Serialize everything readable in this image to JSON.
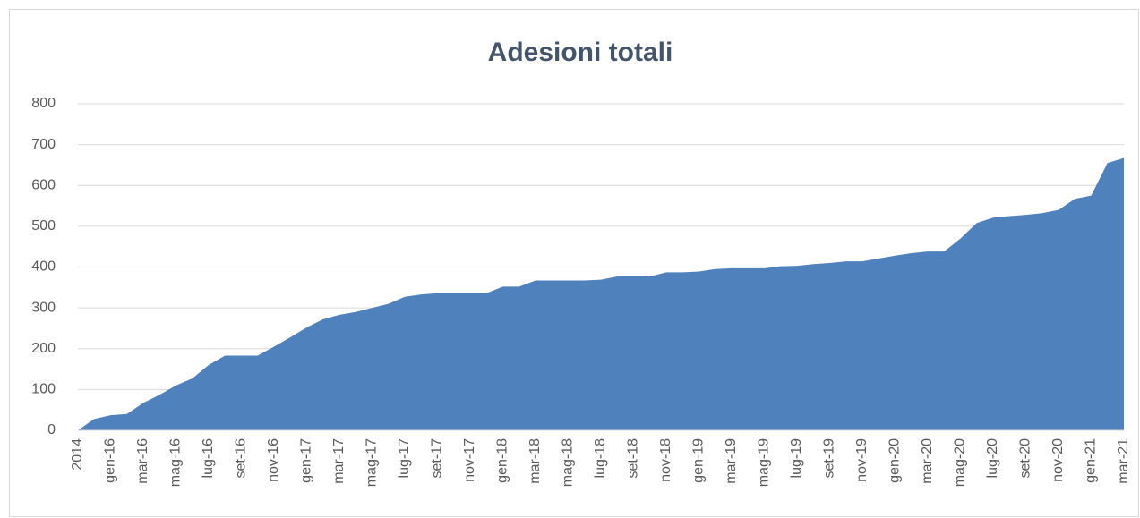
{
  "chart_data": {
    "type": "area",
    "title": "Adesioni totali",
    "categories": [
      "2014",
      null,
      "gen-16",
      null,
      "mar-16",
      null,
      "mag-16",
      null,
      "lug-16",
      null,
      "set-16",
      null,
      "nov-16",
      null,
      "gen-17",
      null,
      "mar-17",
      null,
      "mag-17",
      null,
      "lug-17",
      null,
      "set-17",
      null,
      "nov-17",
      null,
      "gen-18",
      null,
      "mar-18",
      null,
      "mag-18",
      null,
      "lug-18",
      null,
      "set-18",
      null,
      "nov-18",
      null,
      "gen-19",
      null,
      "mar-19",
      null,
      "mag-19",
      null,
      "lug-19",
      null,
      "set-19",
      null,
      "nov-19",
      null,
      "gen-20",
      null,
      "mar-20",
      null,
      "mag-20",
      null,
      "lug-20",
      null,
      "set-20",
      null,
      "nov-20",
      null,
      "gen-21",
      null,
      "mar-21"
    ],
    "values": [
      0,
      28,
      37,
      40,
      67,
      87,
      110,
      127,
      160,
      183,
      183,
      183,
      205,
      228,
      252,
      272,
      283,
      290,
      300,
      310,
      327,
      333,
      336,
      336,
      336,
      336,
      352,
      352,
      367,
      367,
      367,
      367,
      369,
      377,
      377,
      377,
      387,
      387,
      389,
      395,
      397,
      397,
      397,
      402,
      403,
      407,
      410,
      414,
      414,
      421,
      428,
      434,
      438,
      438,
      470,
      508,
      521,
      525,
      528,
      532,
      540,
      567,
      575,
      655,
      667
    ],
    "color": "#4f81bd",
    "ylim": [
      0,
      800
    ],
    "yticks": [
      0,
      100,
      200,
      300,
      400,
      500,
      600,
      700,
      800
    ],
    "grid": true
  }
}
